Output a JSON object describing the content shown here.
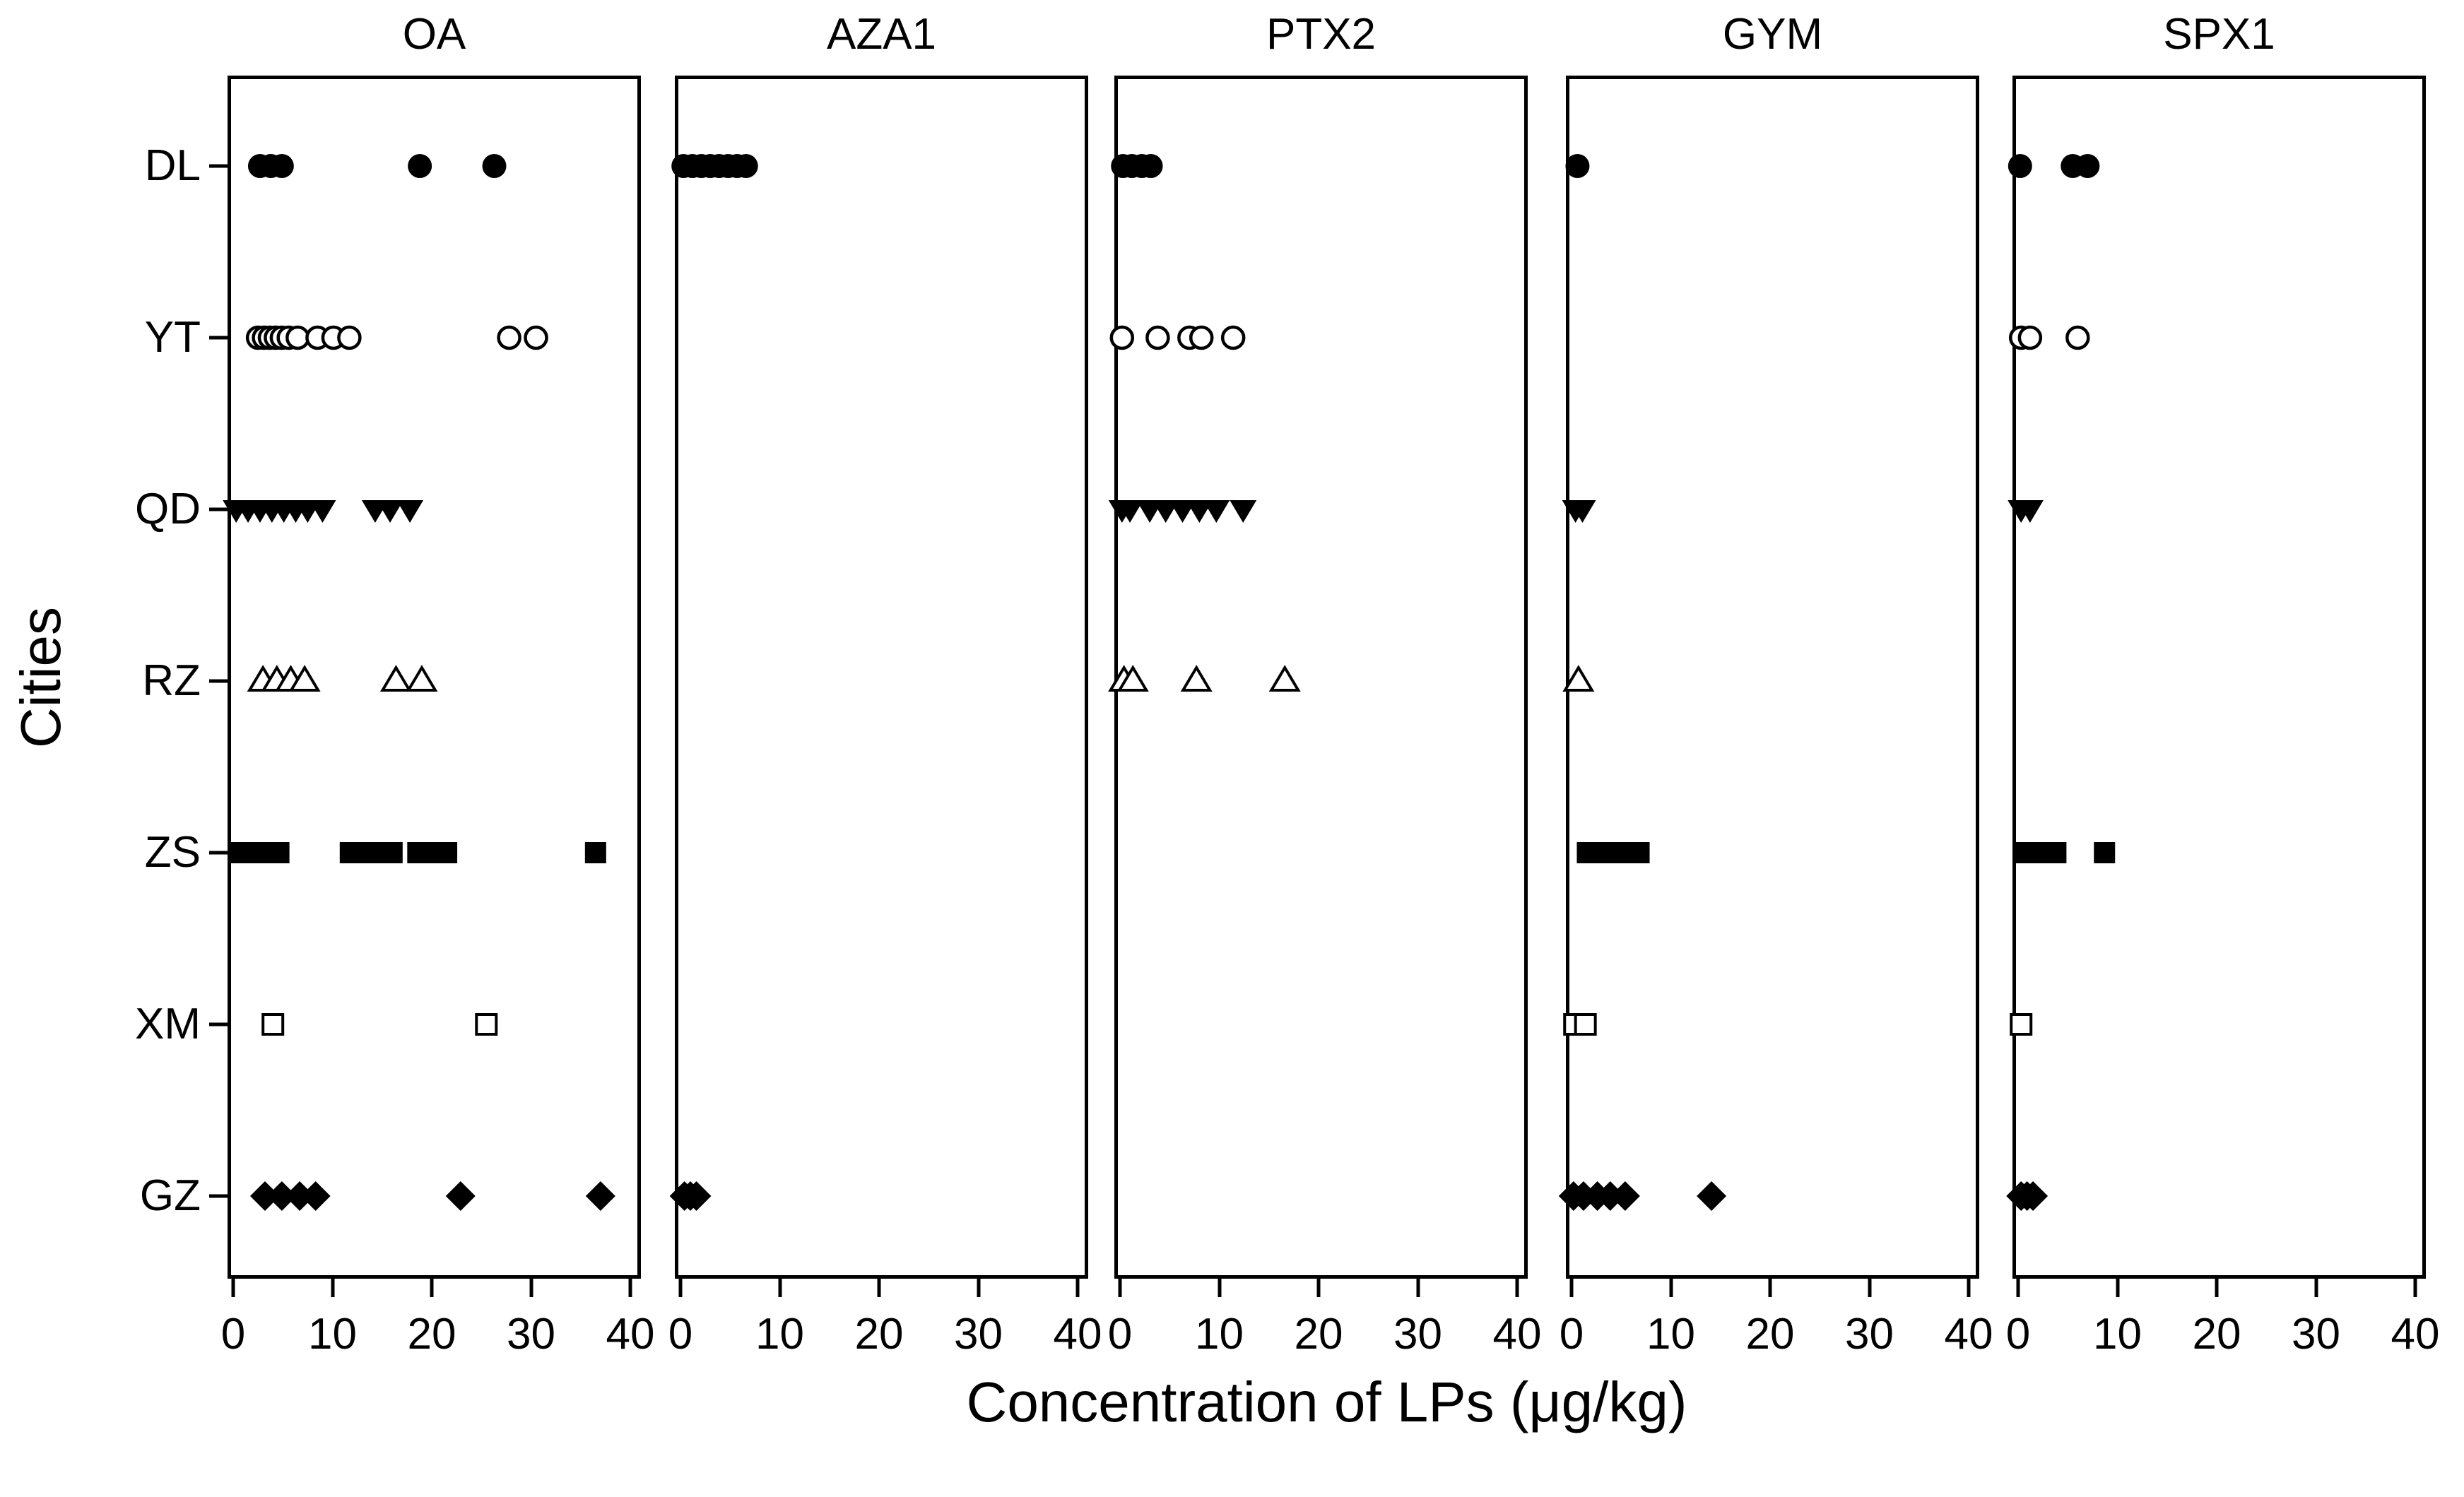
{
  "figure": {
    "xlabel": "Concentration of LPs (μg/kg)",
    "ylabel": "Cities",
    "ink_color": "#000000",
    "background_color": "#ffffff"
  },
  "chart_data": {
    "type": "scatter",
    "title": "",
    "xlabel": "Concentration of LPs (μg/kg)",
    "ylabel": "Cities",
    "xlim": [
      0,
      40
    ],
    "xticks": [
      0,
      10,
      20,
      30,
      40
    ],
    "grid": false,
    "legend_position": "none",
    "rows": [
      "DL",
      "YT",
      "QD",
      "RZ",
      "ZS",
      "XM",
      "GZ"
    ],
    "row_markers": {
      "DL": "filled-circle",
      "YT": "open-circle",
      "QD": "filled-triangle-down",
      "RZ": "open-triangle-up",
      "ZS": "filled-square",
      "XM": "open-square",
      "GZ": "filled-diamond"
    },
    "panels": [
      {
        "label": "OA",
        "points": {
          "DL": [
            2.7,
            3.8,
            4.9,
            18.8,
            26.3
          ],
          "YT": [
            2.5,
            3.1,
            3.7,
            4.3,
            4.9,
            5.6,
            6.5,
            8.5,
            10.1,
            11.7,
            27.8,
            30.5
          ],
          "QD": [
            0.3,
            1.5,
            2.7,
            3.9,
            5.1,
            6.3,
            7.5,
            9.0,
            14.3,
            15.8,
            17.8
          ],
          "RZ": [
            3.0,
            4.4,
            5.8,
            7.2,
            16.4,
            19.0
          ],
          "ZS": [
            0.7,
            2.0,
            3.3,
            4.6,
            11.8,
            13.2,
            14.6,
            16.0,
            18.6,
            20.0,
            21.5,
            36.5
          ],
          "XM": [
            4.0,
            25.5
          ],
          "GZ": [
            3.2,
            4.9,
            6.7,
            8.3,
            22.9,
            37.0
          ]
        }
      },
      {
        "label": "AZA1",
        "points": {
          "DL": [
            0.3,
            1.2,
            2.1,
            3.0,
            3.9,
            4.8,
            5.7,
            6.6
          ],
          "YT": [],
          "QD": [],
          "RZ": [],
          "ZS": [],
          "XM": [],
          "GZ": [
            0.4,
            1.0,
            1.6
          ]
        }
      },
      {
        "label": "PTX2",
        "points": {
          "DL": [
            0.3,
            1.2,
            2.2,
            3.1
          ],
          "YT": [
            0.2,
            3.8,
            7.0,
            8.2,
            11.4
          ],
          "QD": [
            0.2,
            1.0,
            3.0,
            4.6,
            6.3,
            8.0,
            9.7,
            12.4
          ],
          "RZ": [
            0.4,
            1.3,
            7.7,
            16.6
          ],
          "ZS": [],
          "XM": [],
          "GZ": []
        }
      },
      {
        "label": "GYM",
        "points": {
          "DL": [
            0.6
          ],
          "YT": [],
          "QD": [
            0.4,
            1.1
          ],
          "RZ": [
            0.7
          ],
          "ZS": [
            1.6,
            3.0,
            4.4,
            5.8,
            6.8
          ],
          "XM": [
            0.3,
            1.4
          ],
          "GZ": [
            0.2,
            1.2,
            2.6,
            3.9,
            5.4,
            14.1
          ]
        }
      },
      {
        "label": "SPX1",
        "points": {
          "DL": [
            0.2,
            5.5,
            7.0
          ],
          "YT": [
            0.3,
            1.2,
            6.0
          ],
          "QD": [
            0.3,
            1.2
          ],
          "RZ": [],
          "ZS": [
            0.5,
            1.6,
            2.7,
            3.8,
            8.7
          ],
          "XM": [
            0.3
          ],
          "GZ": [
            0.3,
            0.9,
            1.5
          ]
        }
      }
    ]
  }
}
